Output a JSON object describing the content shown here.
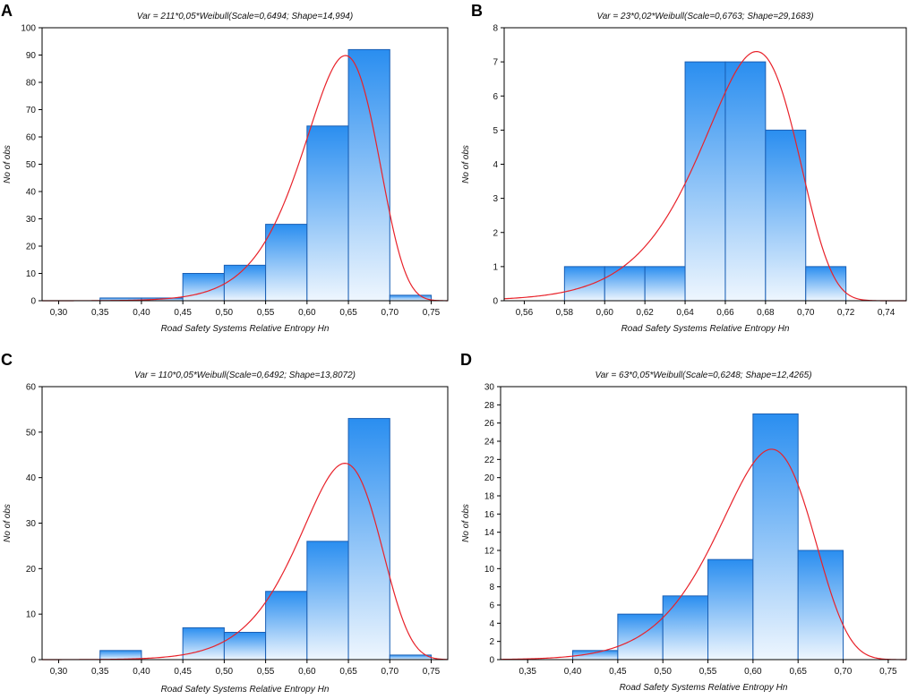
{
  "chart_data": [
    {
      "panel": "A",
      "type": "bar",
      "title": "Var = 211*0,05*Weibull(Scale=0,6494; Shape=14,994)",
      "xlabel": "Road Safety Systems Relative Entropy Hn",
      "ylabel": "No of obs",
      "xlim": [
        0.28,
        0.77
      ],
      "ylim": [
        0,
        100
      ],
      "xticks": [
        "0,30",
        "0,35",
        "0,40",
        "0,45",
        "0,50",
        "0,55",
        "0,60",
        "0,65",
        "0,70",
        "0,75"
      ],
      "yticks": [
        "0",
        "10",
        "20",
        "30",
        "40",
        "50",
        "60",
        "70",
        "80",
        "90",
        "100"
      ],
      "bin_edges": [
        0.35,
        0.4,
        0.45,
        0.5,
        0.55,
        0.6,
        0.65,
        0.7,
        0.75
      ],
      "values": [
        1,
        1,
        10,
        13,
        28,
        64,
        92,
        2
      ],
      "fit": {
        "n": 211,
        "width": 0.05,
        "scale": 0.6494,
        "shape": 14.994
      }
    },
    {
      "panel": "B",
      "type": "bar",
      "title": "Var = 23*0,02*Weibull(Scale=0,6763; Shape=29,1683)",
      "xlabel": "Road Safety Systems Relative Entropy Hn",
      "ylabel": "No of obs",
      "xlim": [
        0.55,
        0.75
      ],
      "ylim": [
        0,
        8
      ],
      "xticks": [
        "0,56",
        "0,58",
        "0,60",
        "0,62",
        "0,64",
        "0,66",
        "0,68",
        "0,70",
        "0,72",
        "0,74"
      ],
      "yticks": [
        "0",
        "1",
        "2",
        "3",
        "4",
        "5",
        "6",
        "7",
        "8"
      ],
      "bin_edges": [
        0.58,
        0.6,
        0.62,
        0.64,
        0.66,
        0.68,
        0.7,
        0.72
      ],
      "values": [
        1,
        1,
        1,
        7,
        7,
        5,
        1
      ],
      "fit": {
        "n": 23,
        "width": 0.02,
        "scale": 0.6763,
        "shape": 29.1683
      }
    },
    {
      "panel": "C",
      "type": "bar",
      "title": "Var = 110*0,05*Weibull(Scale=0,6492; Shape=13,8072)",
      "xlabel": "Road Safety Systems Relative Entropy Hn",
      "ylabel": "No of obs",
      "xlim": [
        0.28,
        0.77
      ],
      "ylim": [
        0,
        60
      ],
      "xticks": [
        "0,30",
        "0,35",
        "0,40",
        "0,45",
        "0,50",
        "0,55",
        "0,60",
        "0,65",
        "0,70",
        "0,75"
      ],
      "yticks": [
        "0",
        "10",
        "20",
        "30",
        "40",
        "50",
        "60"
      ],
      "bin_edges": [
        0.35,
        0.4,
        0.45,
        0.5,
        0.55,
        0.6,
        0.65,
        0.7,
        0.75
      ],
      "values": [
        2,
        0,
        7,
        6,
        15,
        26,
        53,
        1
      ],
      "fit": {
        "n": 110,
        "width": 0.05,
        "scale": 0.6492,
        "shape": 13.8072
      }
    },
    {
      "panel": "D",
      "type": "bar",
      "title": "Var = 63*0,05*Weibull(Scale=0,6248; Shape=12,4265)",
      "xlabel": "Road Safety Systems Relative Entropy Hn",
      "ylabel": "No of obs",
      "xlim": [
        0.32,
        0.77
      ],
      "ylim": [
        0,
        30
      ],
      "xticks": [
        "0,35",
        "0,40",
        "0,45",
        "0,50",
        "0,55",
        "0,60",
        "0,65",
        "0,70",
        "0,75"
      ],
      "yticks": [
        "0",
        "2",
        "4",
        "6",
        "8",
        "10",
        "12",
        "14",
        "16",
        "18",
        "20",
        "22",
        "24",
        "26",
        "28",
        "30"
      ],
      "bin_edges": [
        0.4,
        0.45,
        0.5,
        0.55,
        0.6,
        0.65,
        0.7
      ],
      "values": [
        1,
        5,
        7,
        11,
        27,
        12
      ],
      "fit": {
        "n": 63,
        "width": 0.05,
        "scale": 0.6248,
        "shape": 12.4265
      }
    }
  ]
}
